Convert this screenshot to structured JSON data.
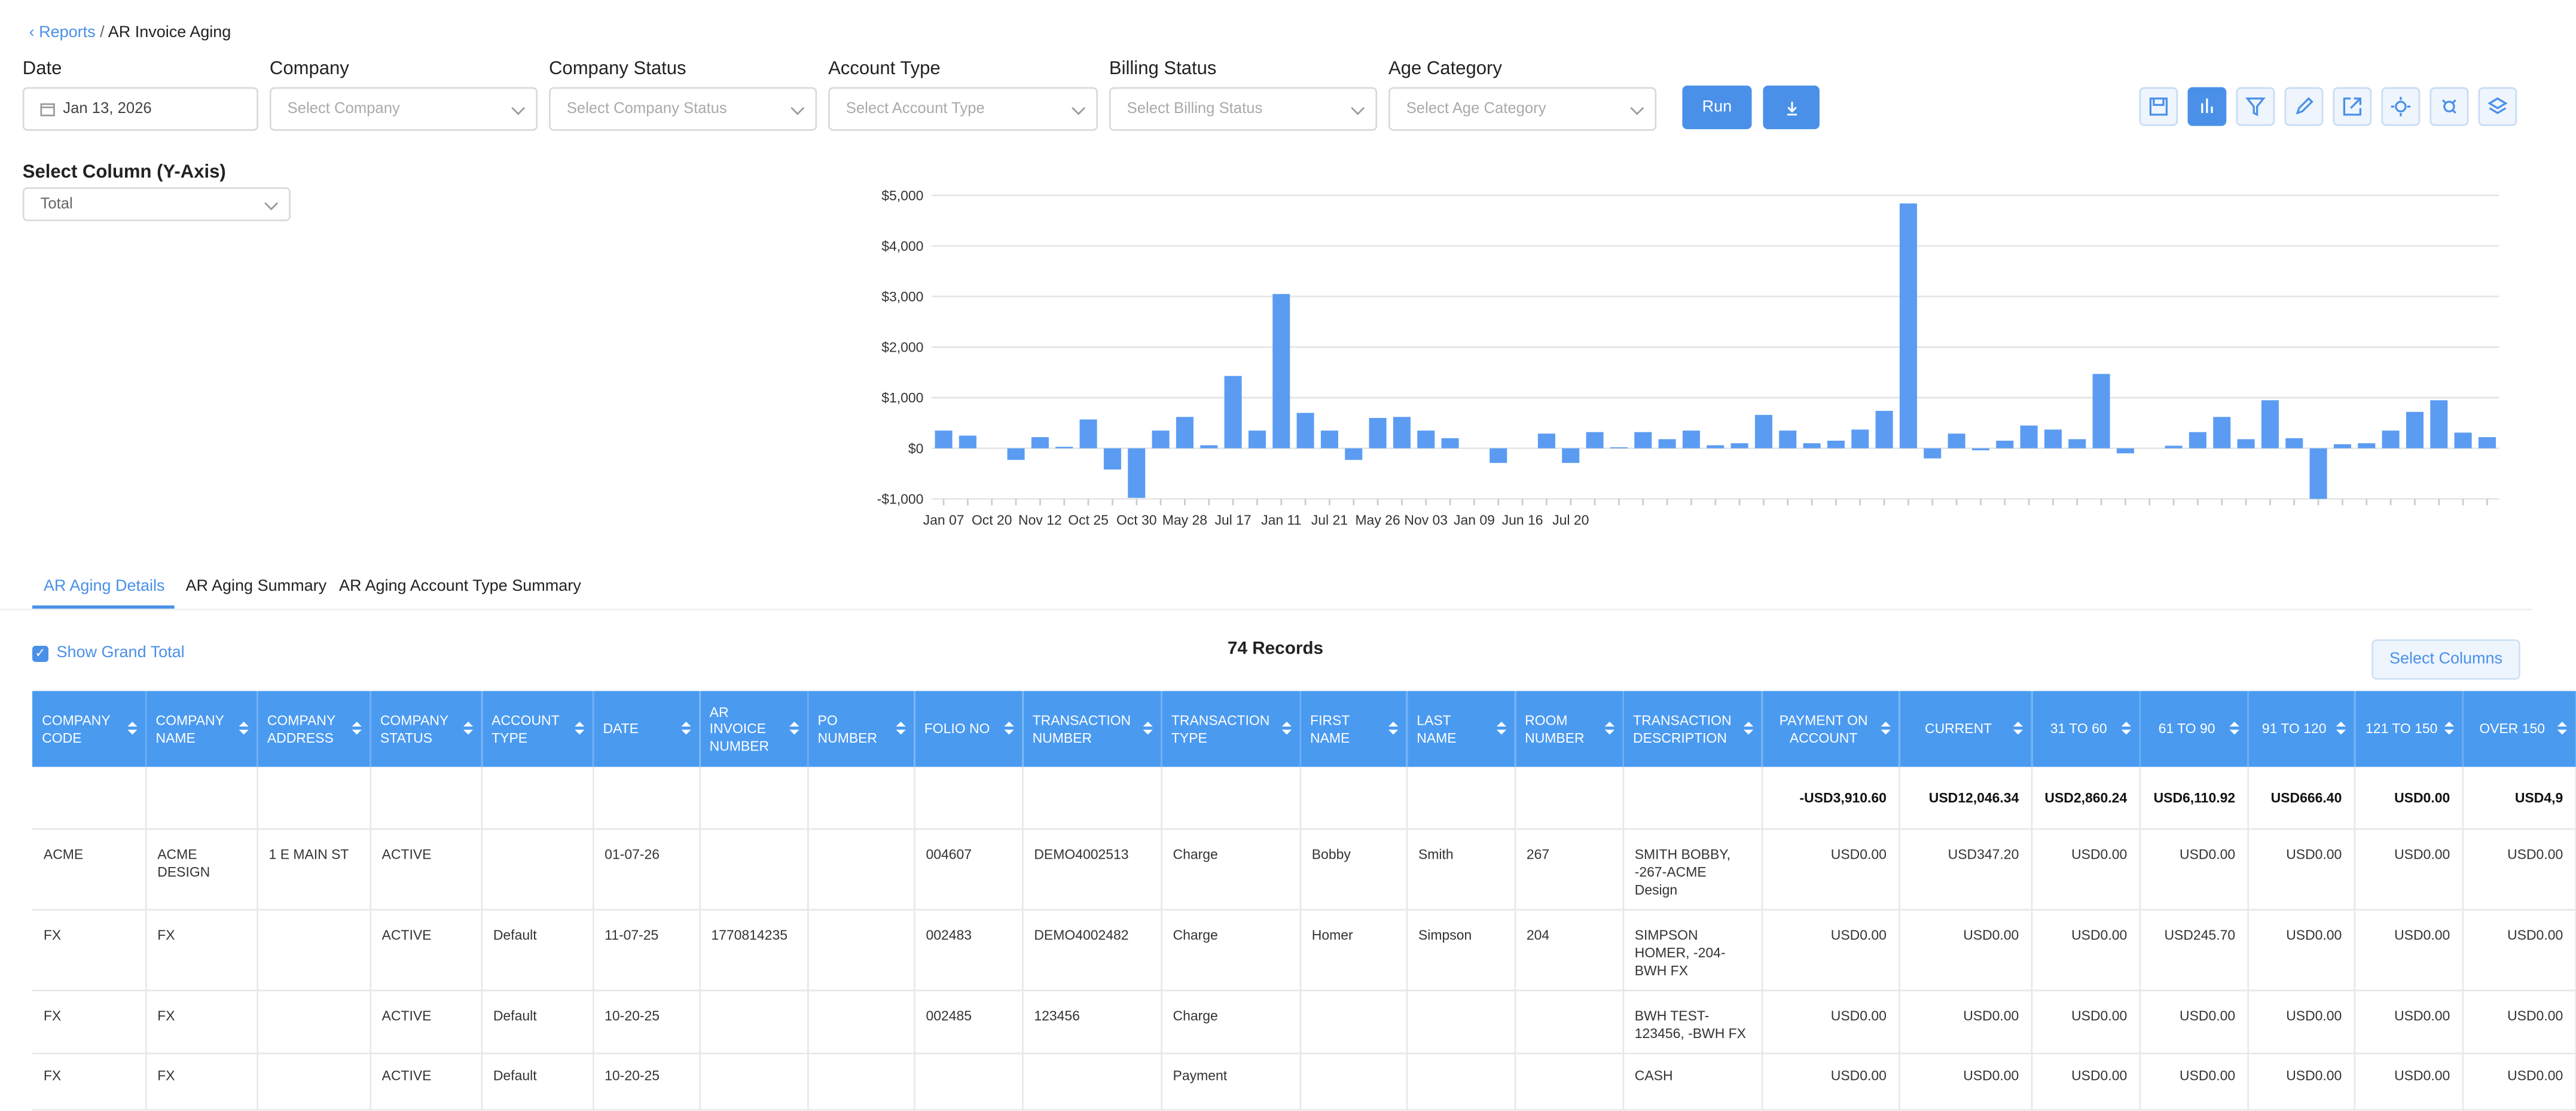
{
  "breadcrumb": {
    "parent": "Reports",
    "current": "AR Invoice Aging"
  },
  "filters": [
    {
      "label": "Date",
      "value": "Jan 13, 2026"
    },
    {
      "label": "Company",
      "placeholder": "Select Company"
    },
    {
      "label": "Company Status",
      "placeholder": "Select Company Status"
    },
    {
      "label": "Account Type",
      "placeholder": "Select Account Type"
    },
    {
      "label": "Billing Status",
      "placeholder": "Select Billing Status"
    },
    {
      "label": "Age Category",
      "placeholder": "Select Age Category"
    }
  ],
  "run_button": "Run",
  "y_axis_select": {
    "label": "Select Column (Y-Axis)",
    "value": "Total"
  },
  "chart": {
    "type": "bar",
    "color": "#5b9cf2",
    "categories": [
      "Jan 07",
      null,
      "Oct 20",
      null,
      "Nov 12",
      null,
      "Oct 25",
      null,
      "Oct 30",
      null,
      "May 28",
      null,
      "Jul 17",
      null,
      "Jan 11",
      null,
      "Jul 21",
      null,
      "May 26",
      null,
      "Nov 03",
      null,
      "Jan 09",
      null,
      "Jun 16",
      null,
      "Jul 20",
      null,
      null,
      null,
      null,
      null,
      null,
      null,
      null,
      null,
      null,
      null,
      null,
      null,
      null,
      null,
      null,
      null,
      null,
      null,
      null,
      null,
      null,
      null,
      null,
      null,
      null,
      null,
      null,
      null,
      null,
      null,
      null,
      null,
      null,
      null,
      null,
      null,
      null
    ],
    "values": [
      350,
      250,
      0,
      -230,
      220,
      30,
      570,
      -420,
      -980,
      350,
      620,
      60,
      1430,
      350,
      3050,
      700,
      350,
      -230,
      600,
      620,
      350,
      200,
      0,
      -290,
      0,
      290,
      -290,
      320,
      20,
      320,
      180,
      350,
      60,
      100,
      660,
      350,
      100,
      150,
      370,
      740,
      4840,
      -200,
      290,
      -40,
      150,
      450,
      370,
      180,
      1470,
      -100,
      0,
      50,
      320,
      620,
      180,
      950,
      200,
      -1000,
      80,
      100,
      350,
      720,
      950,
      310,
      220
    ],
    "ylim": [
      -1000,
      5000
    ],
    "yticks": [
      {
        "value": -1000,
        "label": "-$1,000"
      },
      {
        "value": 0,
        "label": "$0"
      },
      {
        "value": 1000,
        "label": "$1,000"
      },
      {
        "value": 2000,
        "label": "$2,000"
      },
      {
        "value": 3000,
        "label": "$3,000"
      },
      {
        "value": 4000,
        "label": "$4,000"
      },
      {
        "value": 5000,
        "label": "$5,000"
      }
    ],
    "grid": true
  },
  "tabs": [
    "AR Aging Details",
    "AR Aging Summary",
    "AR Aging Account Type Summary"
  ],
  "show_grand_total": "Show Grand Total",
  "records": "74 Records",
  "select_columns": "Select Columns",
  "table": {
    "columns": [
      "COMPANY CODE",
      "COMPANY NAME",
      "COMPANY ADDRESS",
      "COMPANY STATUS",
      "ACCOUNT TYPE",
      "DATE",
      "AR INVOICE NUMBER",
      "PO NUMBER",
      "FOLIO NO",
      "TRANSACTION NUMBER",
      "TRANSACTION TYPE",
      "FIRST NAME",
      "LAST NAME",
      "ROOM NUMBER",
      "TRANSACTION DESCRIPTION",
      "PAYMENT ON ACCOUNT",
      "CURRENT",
      "31 TO 60",
      "61 TO 90",
      "91 TO 120",
      "121 TO 150",
      "OVER 150"
    ],
    "grand_total": [
      null,
      null,
      null,
      null,
      null,
      null,
      null,
      null,
      null,
      null,
      null,
      null,
      null,
      null,
      null,
      "-USD3,910.60",
      "USD12,046.34",
      "USD2,860.24",
      "USD6,110.92",
      "USD666.40",
      "USD0.00",
      "USD4,9"
    ],
    "rows": [
      [
        "ACME",
        "ACME DESIGN",
        "1 E MAIN ST",
        "ACTIVE",
        null,
        "01-07-26",
        null,
        null,
        "004607",
        "DEMO4002513",
        "Charge",
        "Bobby",
        "Smith",
        "267",
        "SMITH BOBBY, -267-ACME Design",
        "USD0.00",
        "USD347.20",
        "USD0.00",
        "USD0.00",
        "USD0.00",
        "USD0.00",
        "USD0.00"
      ],
      [
        "FX",
        "FX",
        null,
        "ACTIVE",
        "Default",
        "11-07-25",
        "1770814235",
        null,
        "002483",
        "DEMO4002482",
        "Charge",
        "Homer",
        "Simpson",
        "204",
        "SIMPSON HOMER, -204-BWH FX",
        "USD0.00",
        "USD0.00",
        "USD0.00",
        "USD245.70",
        "USD0.00",
        "USD0.00",
        "USD0.00"
      ],
      [
        "FX",
        "FX",
        null,
        "ACTIVE",
        "Default",
        "10-20-25",
        null,
        null,
        "002485",
        "123456",
        "Charge",
        null,
        null,
        null,
        "BWH TEST-123456, -BWH FX",
        "USD0.00",
        "USD0.00",
        "USD0.00",
        "USD0.00",
        "USD0.00",
        "USD0.00",
        "USD0.00"
      ],
      [
        "FX",
        "FX",
        null,
        "ACTIVE",
        "Default",
        "10-20-25",
        null,
        null,
        null,
        null,
        "Payment",
        null,
        null,
        null,
        "CASH",
        "USD0.00",
        "USD0.00",
        "USD0.00",
        "USD0.00",
        "USD0.00",
        "USD0.00",
        "USD0.00"
      ]
    ]
  }
}
